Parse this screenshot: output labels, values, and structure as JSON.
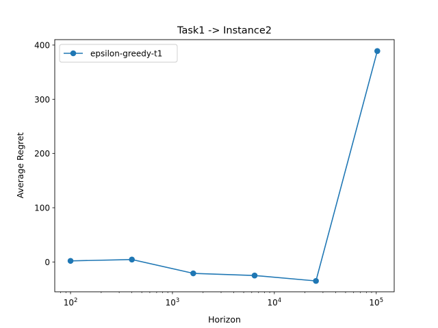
{
  "chart_data": {
    "type": "line",
    "title": "Task1 -> Instance2",
    "xlabel": "Horizon",
    "ylabel": "Average Regret",
    "xscale": "log",
    "xlim": [
      70,
      150000
    ],
    "ylim": [
      -55,
      410
    ],
    "x_ticks": [
      {
        "value": 100,
        "label": "10",
        "exp": "2"
      },
      {
        "value": 1000,
        "label": "10",
        "exp": "3"
      },
      {
        "value": 10000,
        "label": "10",
        "exp": "4"
      },
      {
        "value": 100000,
        "label": "10",
        "exp": "5"
      }
    ],
    "y_ticks": [
      {
        "value": 0,
        "label": "0"
      },
      {
        "value": 100,
        "label": "100"
      },
      {
        "value": 200,
        "label": "200"
      },
      {
        "value": 300,
        "label": "300"
      },
      {
        "value": 400,
        "label": "400"
      }
    ],
    "grid": false,
    "legend": {
      "placement": "top-left"
    },
    "series": [
      {
        "name": "epsilon-greedy-t1",
        "color": "#1f77b4",
        "marker": "circle",
        "x": [
          100,
          400,
          1600,
          6400,
          25600,
          102400
        ],
        "y": [
          2,
          4.5,
          -21,
          -25,
          -35,
          389
        ]
      }
    ]
  }
}
